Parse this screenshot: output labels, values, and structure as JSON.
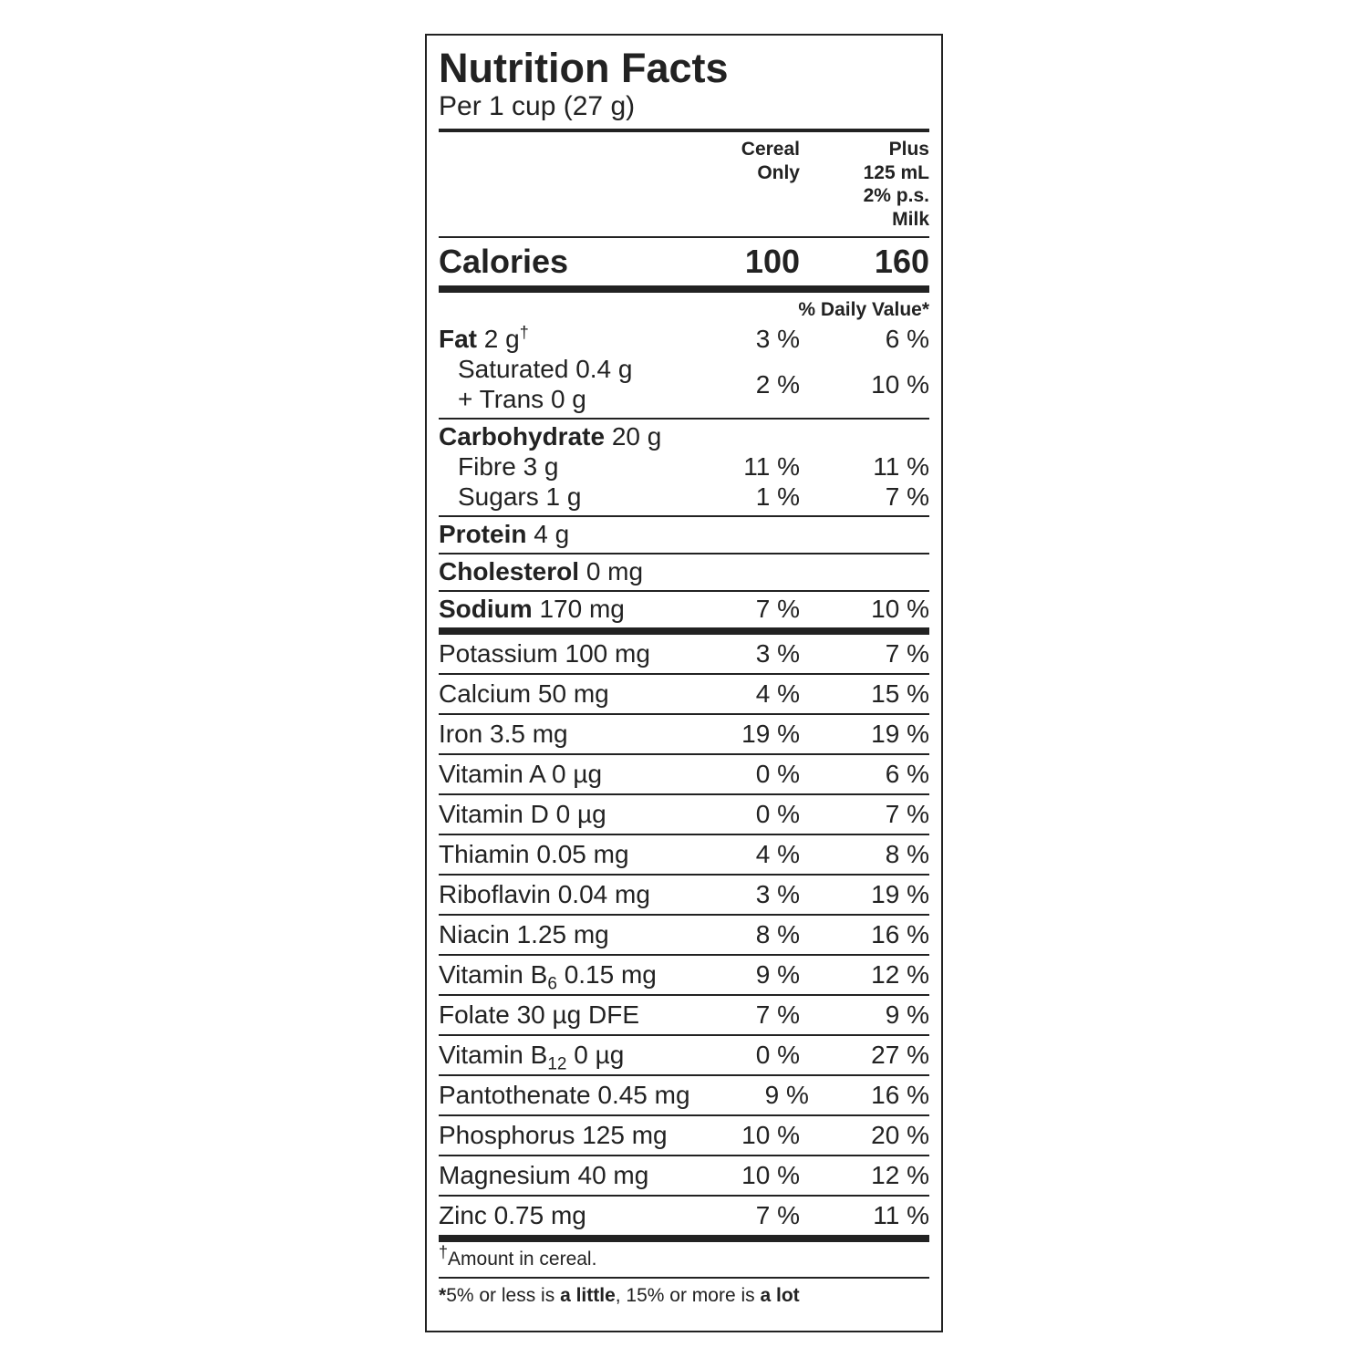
{
  "title": "Nutrition Facts",
  "serving": "Per 1 cup (27 g)",
  "columns": [
    [
      "Cereal",
      "Only"
    ],
    [
      "Plus",
      "125 mL",
      "2% p.s.",
      "Milk"
    ]
  ],
  "calories": {
    "label": "Calories",
    "values": [
      "100",
      "160"
    ]
  },
  "daily_value_header": "% Daily Value*",
  "sections": [
    {
      "rows": [
        {
          "bold": "Fat",
          "text": "2 g",
          "sup": "†",
          "values": [
            "3 %",
            "6 %"
          ]
        },
        {
          "lines": [
            "Saturated 0.4 g",
            "+ Trans 0 g"
          ],
          "values": [
            "2 %",
            "10 %"
          ]
        }
      ]
    },
    {
      "rows": [
        {
          "bold": "Carbohydrate",
          "text": "20 g"
        },
        {
          "text": "Fibre 3 g",
          "values": [
            "11 %",
            "11 %"
          ]
        },
        {
          "text": "Sugars 1 g",
          "values": [
            "1 %",
            "7 %"
          ]
        }
      ]
    },
    {
      "rows": [
        {
          "bold": "Protein",
          "text": "4 g"
        }
      ]
    },
    {
      "rows": [
        {
          "bold": "Cholesterol",
          "text": "0 mg"
        }
      ]
    },
    {
      "rows": [
        {
          "bold": "Sodium",
          "text": "170 mg",
          "values": [
            "7 %",
            "10 %"
          ]
        }
      ]
    }
  ],
  "micronutrients": [
    {
      "text": "Potassium 100 mg",
      "values": [
        "3 %",
        "7 %"
      ]
    },
    {
      "text": "Calcium 50 mg",
      "values": [
        "4 %",
        "15 %"
      ]
    },
    {
      "text": "Iron 3.5 mg",
      "values": [
        "19 %",
        "19 %"
      ]
    },
    {
      "text": "Vitamin A 0 µg",
      "values": [
        "0 %",
        "6 %"
      ]
    },
    {
      "text": "Vitamin D 0 µg",
      "values": [
        "0 %",
        "7 %"
      ]
    },
    {
      "text": "Thiamin 0.05 mg",
      "values": [
        "4 %",
        "8 %"
      ]
    },
    {
      "text": "Riboflavin 0.04 mg",
      "values": [
        "3 %",
        "19 %"
      ]
    },
    {
      "text": "Niacin 1.25 mg",
      "values": [
        "8 %",
        "16 %"
      ]
    },
    {
      "text": "Vitamin B",
      "sub": "6",
      "text2": "0.15 mg",
      "values": [
        "9 %",
        "12 %"
      ]
    },
    {
      "text": "Folate 30 µg DFE",
      "values": [
        "7 %",
        "9 %"
      ]
    },
    {
      "text": "Vitamin B",
      "sub": "12",
      "text2": "0 µg",
      "values": [
        "0 %",
        "27 %"
      ]
    },
    {
      "text": "Pantothenate 0.45 mg",
      "values": [
        "9 %",
        "16 %"
      ]
    },
    {
      "text": "Phosphorus 125 mg",
      "values": [
        "10 %",
        "20 %"
      ]
    },
    {
      "text": "Magnesium 40 mg",
      "values": [
        "10 %",
        "12 %"
      ]
    },
    {
      "text": "Zinc 0.75 mg",
      "values": [
        "7 %",
        "11 %"
      ]
    }
  ],
  "footnotes": [
    {
      "mark": "†",
      "parts": [
        "Amount in cereal."
      ]
    },
    {
      "mark": "*",
      "parts": [
        "5% or less is ",
        "a little",
        ", 15% or more is ",
        "a lot"
      ]
    }
  ]
}
